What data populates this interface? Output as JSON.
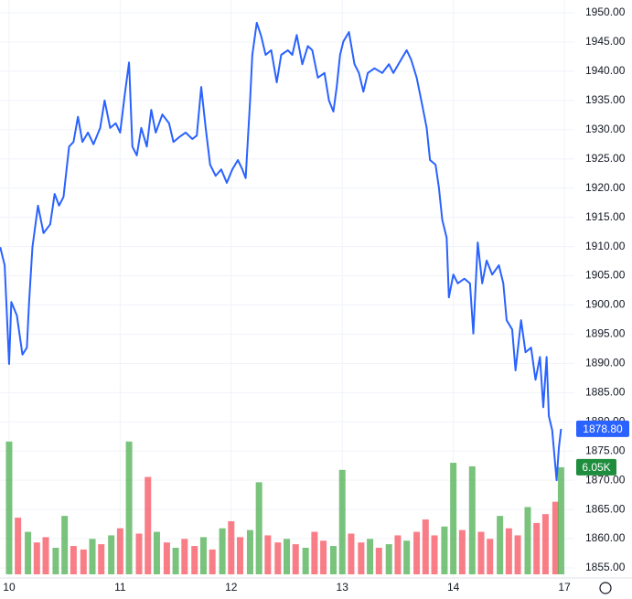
{
  "chart_data": {
    "type": "line",
    "xlim": [
      -0.082,
      5.09
    ],
    "xticks": [
      {
        "value": 0,
        "label": "10"
      },
      {
        "value": 1,
        "label": "11"
      },
      {
        "value": 2,
        "label": "12"
      },
      {
        "value": 3,
        "label": "13"
      },
      {
        "value": 4,
        "label": "14"
      },
      {
        "value": 5,
        "label": "17"
      }
    ],
    "ylim": [
      1855,
      1950
    ],
    "yticks": [
      {
        "value": 1855,
        "label": "1855.00"
      },
      {
        "value": 1860,
        "label": "1860.00"
      },
      {
        "value": 1865,
        "label": "1865.00"
      },
      {
        "value": 1870,
        "label": "1870.00"
      },
      {
        "value": 1875,
        "label": "1875.00"
      },
      {
        "value": 1880,
        "label": "1880.00"
      },
      {
        "value": 1885,
        "label": "1885.00"
      },
      {
        "value": 1890,
        "label": "1890.00"
      },
      {
        "value": 1895,
        "label": "1895.00"
      },
      {
        "value": 1900,
        "label": "1900.00"
      },
      {
        "value": 1905,
        "label": "1905.00"
      },
      {
        "value": 1910,
        "label": "1910.00"
      },
      {
        "value": 1915,
        "label": "1915.00"
      },
      {
        "value": 1920,
        "label": "1920.00"
      },
      {
        "value": 1925,
        "label": "1925.00"
      },
      {
        "value": 1930,
        "label": "1930.00"
      },
      {
        "value": 1935,
        "label": "1935.00"
      },
      {
        "value": 1940,
        "label": "1940.00"
      },
      {
        "value": 1945,
        "label": "1945.00"
      },
      {
        "value": 1950,
        "label": "1950.00"
      }
    ],
    "grid": true,
    "series": [
      {
        "color": "#2962ff",
        "x": [
          -0.08,
          -0.04,
          0,
          0.02,
          0.07,
          0.12,
          0.16,
          0.18,
          0.21,
          0.26,
          0.31,
          0.37,
          0.41,
          0.45,
          0.49,
          0.54,
          0.58,
          0.62,
          0.66,
          0.71,
          0.76,
          0.82,
          0.86,
          0.91,
          0.96,
          1.0,
          1.04,
          1.08,
          1.11,
          1.15,
          1.19,
          1.24,
          1.28,
          1.32,
          1.38,
          1.44,
          1.48,
          1.53,
          1.59,
          1.65,
          1.69,
          1.73,
          1.77,
          1.81,
          1.86,
          1.91,
          1.96,
          2.01,
          2.06,
          2.1,
          2.13,
          2.17,
          2.19,
          2.23,
          2.27,
          2.31,
          2.36,
          2.41,
          2.45,
          2.51,
          2.55,
          2.59,
          2.64,
          2.69,
          2.73,
          2.78,
          2.84,
          2.88,
          2.92,
          2.95,
          2.98,
          3.01,
          3.06,
          3.11,
          3.15,
          3.19,
          3.23,
          3.29,
          3.36,
          3.42,
          3.46,
          3.53,
          3.58,
          3.62,
          3.67,
          3.72,
          3.76,
          3.79,
          3.84,
          3.87,
          3.9,
          3.94,
          3.96,
          4.0,
          4.04,
          4.1,
          4.15,
          4.18,
          4.22,
          4.26,
          4.3,
          4.35,
          4.41,
          4.45,
          4.48,
          4.53,
          4.56,
          4.61,
          4.65,
          4.7,
          4.74,
          4.78,
          4.81,
          4.84,
          4.86,
          4.89,
          4.93,
          4.95,
          4.97
        ],
        "values": [
          1909.9,
          1906.8,
          1889.9,
          1900.5,
          1898.2,
          1891.5,
          1892.7,
          1900.5,
          1909.9,
          1917,
          1912.3,
          1913.8,
          1919,
          1917,
          1918.5,
          1927.1,
          1927.9,
          1932.2,
          1927.9,
          1929.5,
          1927.5,
          1930.3,
          1935,
          1930.3,
          1931.1,
          1929.5,
          1935.8,
          1941.5,
          1927.1,
          1925.6,
          1930.3,
          1927.1,
          1933.4,
          1929.5,
          1932.6,
          1931.1,
          1927.9,
          1928.7,
          1929.5,
          1928.4,
          1929,
          1937.3,
          1930.3,
          1924,
          1922.1,
          1923.2,
          1920.9,
          1923.2,
          1924.8,
          1923.2,
          1921.7,
          1935,
          1942.8,
          1948.3,
          1946,
          1942.8,
          1943.6,
          1938.1,
          1942.8,
          1943.6,
          1942.8,
          1946.2,
          1941.2,
          1944.3,
          1943.6,
          1938.9,
          1939.7,
          1935,
          1933.1,
          1937.3,
          1942.8,
          1945.1,
          1946.7,
          1941.2,
          1939.7,
          1936.5,
          1939.7,
          1940.5,
          1939.7,
          1941.2,
          1939.7,
          1942,
          1943.6,
          1942,
          1938.9,
          1934.2,
          1930.3,
          1924.8,
          1924,
          1920.1,
          1914.6,
          1911.5,
          1901.3,
          1905.2,
          1903.7,
          1904.5,
          1903.7,
          1895.1,
          1910.7,
          1903.7,
          1907.6,
          1905.2,
          1906.8,
          1903.7,
          1897.4,
          1895.8,
          1888.8,
          1897.4,
          1891.9,
          1892.7,
          1887.2,
          1891.1,
          1882.5,
          1891.1,
          1881,
          1878.6,
          1870,
          1875.5,
          1878.8
        ],
        "last_value_label": "1878.80"
      }
    ],
    "volume": {
      "ylim": [
        0,
        7750
      ],
      "x": [
        0,
        0.08,
        0.17,
        0.25,
        0.33,
        0.42,
        0.5,
        0.58,
        0.67,
        0.75,
        0.83,
        0.92,
        1,
        1.08,
        1.17,
        1.25,
        1.33,
        1.42,
        1.5,
        1.58,
        1.67,
        1.75,
        1.83,
        1.92,
        2,
        2.08,
        2.17,
        2.25,
        2.33,
        2.42,
        2.5,
        2.58,
        2.67,
        2.75,
        2.83,
        2.92,
        3,
        3.08,
        3.17,
        3.25,
        3.33,
        3.42,
        3.5,
        3.58,
        3.67,
        3.75,
        3.83,
        3.92,
        4,
        4.08,
        4.17,
        4.25,
        4.33,
        4.42,
        4.5,
        4.58,
        4.67,
        4.75,
        4.83,
        4.92,
        4.97
      ],
      "values": [
        7500,
        3200,
        2400,
        1800,
        2100,
        1500,
        3300,
        1600,
        1400,
        2000,
        1700,
        2200,
        2600,
        7500,
        2300,
        5500,
        2400,
        1800,
        1500,
        2000,
        1600,
        2100,
        1400,
        2600,
        3000,
        2100,
        2500,
        5200,
        2200,
        1800,
        2000,
        1700,
        1500,
        2400,
        1900,
        1600,
        5900,
        2300,
        1800,
        2000,
        1500,
        1700,
        2200,
        1900,
        2400,
        3100,
        2200,
        2700,
        6300,
        2500,
        6100,
        2400,
        2000,
        3300,
        2600,
        2200,
        3800,
        2900,
        3400,
        4100,
        6050
      ],
      "colors": [
        "#4caf50",
        "#f7525f",
        "#4caf50",
        "#f7525f",
        "#f7525f",
        "#4caf50",
        "#4caf50",
        "#f7525f",
        "#f7525f",
        "#4caf50",
        "#f7525f",
        "#4caf50",
        "#f7525f",
        "#4caf50",
        "#f7525f",
        "#f7525f",
        "#4caf50",
        "#f7525f",
        "#4caf50",
        "#f7525f",
        "#f7525f",
        "#4caf50",
        "#f7525f",
        "#4caf50",
        "#f7525f",
        "#f7525f",
        "#4caf50",
        "#4caf50",
        "#f7525f",
        "#f7525f",
        "#4caf50",
        "#f7525f",
        "#4caf50",
        "#f7525f",
        "#f7525f",
        "#4caf50",
        "#4caf50",
        "#f7525f",
        "#f7525f",
        "#4caf50",
        "#f7525f",
        "#4caf50",
        "#f7525f",
        "#4caf50",
        "#f7525f",
        "#f7525f",
        "#f7525f",
        "#4caf50",
        "#4caf50",
        "#f7525f",
        "#4caf50",
        "#f7525f",
        "#f7525f",
        "#4caf50",
        "#f7525f",
        "#f7525f",
        "#4caf50",
        "#f7525f",
        "#f7525f",
        "#f7525f",
        "#4caf50"
      ],
      "last_value_label": "6.05K"
    }
  }
}
